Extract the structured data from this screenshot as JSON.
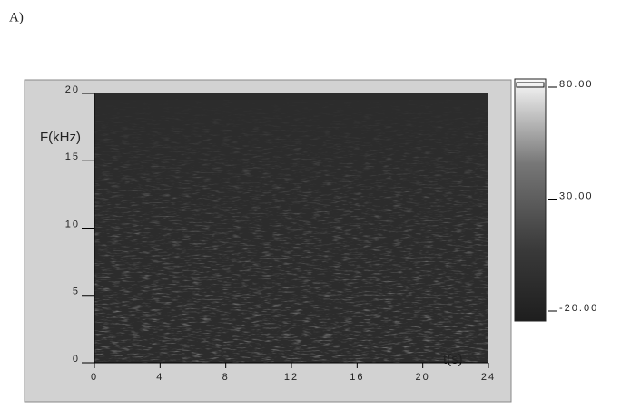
{
  "chart_data": {
    "type": "spectrogram",
    "panel_label": "A)",
    "ylabel": "F(kHz)",
    "xlabel": "t(s)",
    "xlim": [
      0,
      24
    ],
    "xticks": [
      0,
      4,
      8,
      12,
      16,
      20,
      24
    ],
    "ylim": [
      0,
      20
    ],
    "yticks": [
      0,
      5,
      10,
      15,
      20
    ],
    "clim": [
      -20,
      80
    ],
    "cticks": [
      {
        "value": 80,
        "label": "80.00"
      },
      {
        "value": 30,
        "label": "30.00"
      },
      {
        "value": -20,
        "label": "-20.00"
      }
    ]
  }
}
